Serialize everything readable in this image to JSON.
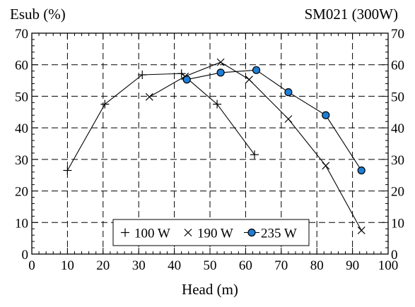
{
  "chart_data": {
    "type": "line",
    "title": "SM021 (300W)",
    "ylabel": "Esub (%)",
    "xlabel": "Head (m)",
    "xlim": [
      0,
      100
    ],
    "ylim": [
      0,
      70
    ],
    "xticks": [
      "0",
      "10",
      "20",
      "30",
      "40",
      "50",
      "60",
      "70",
      "80",
      "90",
      "100"
    ],
    "yticks": [
      "0",
      "10",
      "20",
      "30",
      "40",
      "50",
      "60",
      "70"
    ],
    "grid": true,
    "legend_position": "bottom-center",
    "series": [
      {
        "name": "100 W",
        "marker": "plus",
        "color": "#000000",
        "x": [
          10,
          20.5,
          31,
          42,
          52,
          62.5
        ],
        "y": [
          26.5,
          47.5,
          56.8,
          57.2,
          47.5,
          31.5
        ]
      },
      {
        "name": "190 W",
        "marker": "x",
        "color": "#000000",
        "x": [
          33,
          43,
          53,
          61,
          72,
          82.5,
          92.5
        ],
        "y": [
          49.8,
          56.3,
          60.8,
          55.3,
          42.8,
          28,
          7.5
        ]
      },
      {
        "name": "235 W",
        "marker": "circle",
        "color": "#1e7ed6",
        "x": [
          43.5,
          53,
          63,
          72,
          82.5,
          92.5
        ],
        "y": [
          55.3,
          57.5,
          58.3,
          51.3,
          44,
          26.5
        ]
      }
    ]
  }
}
